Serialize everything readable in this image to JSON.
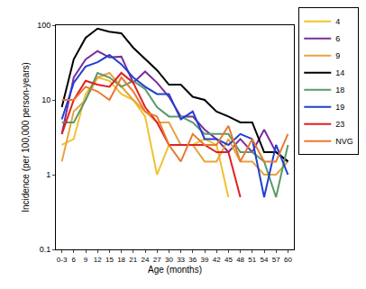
{
  "chart_data": {
    "type": "line",
    "x_label": "Age (months)",
    "y_label": "Incidence (per 100,000 person-years)",
    "categories": [
      "0-3",
      "6",
      "9",
      "12",
      "15",
      "18",
      "21",
      "24",
      "27",
      "30",
      "33",
      "36",
      "39",
      "42",
      "45",
      "48",
      "51",
      "54",
      "57",
      "60"
    ],
    "log": "y",
    "ylim": [
      0.1,
      100
    ],
    "yticks": [
      0.1,
      1,
      10,
      100
    ],
    "grid": false,
    "legend": "right",
    "series": [
      {
        "name": "4",
        "color": "#f2c12e",
        "values": [
          2.5,
          3,
          12,
          20,
          18,
          12,
          10,
          6,
          1,
          2.5,
          2.5,
          2.5,
          3,
          2.5,
          0.5,
          null,
          null,
          null,
          null,
          null
        ]
      },
      {
        "name": "6",
        "color": "#7b2d9b",
        "values": [
          3.5,
          20,
          35,
          45,
          37,
          38,
          17,
          24,
          17,
          11,
          6,
          6,
          4,
          3,
          2,
          3,
          2,
          4,
          2,
          1.5
        ]
      },
      {
        "name": "9",
        "color": "#e8a33d",
        "values": [
          1.5,
          7,
          10,
          20,
          23,
          15,
          10,
          7,
          5,
          5,
          2.5,
          2.5,
          1.5,
          1.5,
          3,
          1.5,
          1.5,
          1,
          1,
          1.5
        ]
      },
      {
        "name": "14",
        "color": "#000000",
        "values": [
          8,
          35,
          68,
          90,
          82,
          78,
          50,
          35,
          25,
          16,
          16,
          11,
          10,
          7,
          6,
          5,
          5,
          2,
          2,
          1.5
        ]
      },
      {
        "name": "18",
        "color": "#5a9a6a",
        "values": [
          5,
          5,
          10,
          23,
          20,
          15,
          18,
          14,
          8,
          6,
          6,
          5,
          3.5,
          3.5,
          3.5,
          2,
          2,
          1.5,
          0.5,
          2.5
        ]
      },
      {
        "name": "19",
        "color": "#1f3fd0",
        "values": [
          5.5,
          17,
          28,
          32,
          40,
          30,
          20,
          15,
          12,
          12,
          5.5,
          7,
          3,
          3,
          2.5,
          3.5,
          3,
          0.5,
          2.5,
          1
        ]
      },
      {
        "name": "23",
        "color": "#e02020",
        "values": [
          3.5,
          10,
          18,
          16,
          15,
          23,
          17,
          8,
          5,
          2.5,
          2.5,
          2.5,
          2.5,
          2,
          2,
          0.5,
          null,
          null,
          null,
          null
        ]
      },
      {
        "name": "NVG",
        "color": "#e87a2e",
        "values": [
          10,
          10,
          15,
          13,
          10,
          20,
          13,
          7,
          6,
          2.5,
          1.5,
          3.5,
          2.5,
          2.5,
          4.5,
          1.5,
          3,
          1.5,
          1.5,
          3.5
        ]
      }
    ]
  }
}
